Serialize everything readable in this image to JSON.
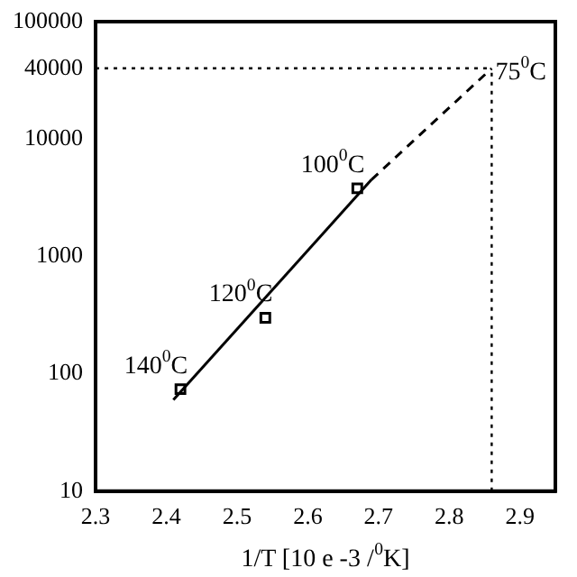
{
  "chart_data": {
    "type": "scatter",
    "xlabel": "1/T [10 e -3 /$^{0}$K]",
    "log": "y",
    "grid": false,
    "legend": false,
    "xlim": [
      2.3,
      2.95
    ],
    "xticks": [
      2.3,
      2.4,
      2.5,
      2.6,
      2.7,
      2.8,
      2.9
    ],
    "ylim": [
      10,
      100000
    ],
    "yticks": [
      10,
      100,
      1000,
      10000,
      40000,
      100000
    ],
    "series": [
      {
        "color": "#000000",
        "marker": "square",
        "x": [
          2.42,
          2.54,
          2.67
        ],
        "values": [
          74,
          300,
          3800
        ]
      },
      {
        "type": "line",
        "color": "#000000",
        "marker": "none",
        "line_style": "solid",
        "x": [
          2.41,
          2.69
        ],
        "values": [
          60,
          4500
        ]
      },
      {
        "type": "line",
        "color": "#000000",
        "marker": "none",
        "line_style": "dashed",
        "x": [
          2.69,
          2.86
        ],
        "values": [
          4500,
          40000
        ]
      }
    ],
    "ref_lines": [
      {
        "axis": "y",
        "value": 40000,
        "line_style": "dotted"
      },
      {
        "axis": "x",
        "value": 2.86,
        "line_style": "dotted"
      }
    ],
    "annotations": [
      {
        "text": "140$^{0}$C",
        "x": 2.42,
        "y": 74
      },
      {
        "text": "120$^{0}$C",
        "x": 2.54,
        "y": 300
      },
      {
        "text": "100$^{0}$C",
        "x": 2.67,
        "y": 3800
      },
      {
        "text": "75$^{0}$C",
        "x": 2.86,
        "y": 40000
      }
    ]
  }
}
